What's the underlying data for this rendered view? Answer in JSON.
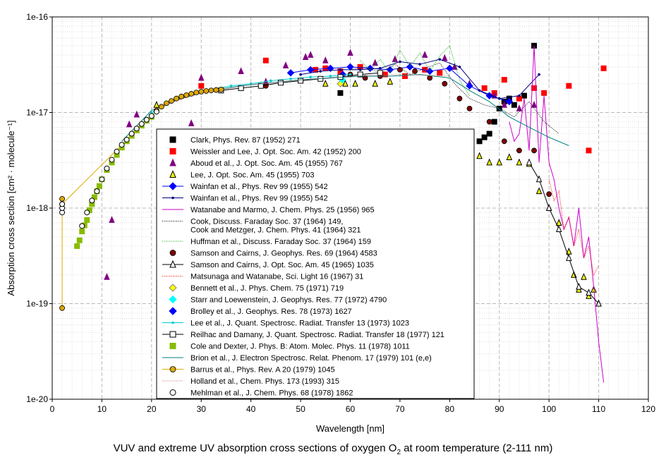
{
  "caption": {
    "before": "VUV and extreme UV absorption cross sections of oxygen O",
    "subscript": "2",
    "after": " at room temperature (2-111 nm)"
  },
  "chart_data": {
    "type": "scatter",
    "xlabel": "Wavelength [nm]",
    "ylabel": "Absorption cross section [cm² · molecule⁻¹]",
    "xlim": [
      0,
      120
    ],
    "ylim": [
      1e-20,
      1e-16
    ],
    "yscale": "log",
    "grid": true,
    "legend_position": "center-left",
    "x_ticks": [
      "0",
      "10",
      "20",
      "30",
      "40",
      "50",
      "60",
      "70",
      "80",
      "90",
      "100",
      "110",
      "120"
    ],
    "y_ticks": [
      "1e-20",
      "1e-19",
      "1e-18",
      "1e-17",
      "1e-16"
    ],
    "series": [
      {
        "name": "Clark, Phys. Rev. 87 (1952) 271",
        "style": "marker",
        "marker": "square",
        "color": "#000000",
        "x": [
          58,
          86,
          87,
          88,
          89,
          90,
          91,
          92,
          93,
          95,
          97
        ],
        "y": [
          1.6e-17,
          5e-18,
          5.5e-18,
          6e-18,
          8e-18,
          1.1e-17,
          1.3e-17,
          1.4e-17,
          1.2e-17,
          1.5e-17,
          5e-17
        ]
      },
      {
        "name": "Weissler and Lee, J. Opt. Soc. Am. 42 (1952) 200",
        "style": "marker",
        "marker": "square",
        "color": "#ff0000",
        "x": [
          30,
          43,
          53,
          55,
          58,
          62,
          67,
          71,
          75,
          78,
          87,
          89,
          91,
          94,
          97,
          99,
          104,
          108,
          111
        ],
        "y": [
          1.9e-17,
          3.5e-17,
          2.8e-17,
          2.9e-17,
          2.7e-17,
          3e-17,
          2.5e-17,
          2.4e-17,
          2.8e-17,
          2.6e-17,
          1.8e-17,
          1.6e-17,
          2.2e-17,
          1.4e-17,
          1.8e-17,
          1.6e-17,
          1.9e-17,
          4e-18,
          2.9e-17
        ]
      },
      {
        "name": "Aboud et al., J. Opt. Soc. Am. 45 (1955) 767",
        "style": "marker",
        "marker": "triangle",
        "color": "#800080",
        "x": [
          11,
          12,
          15.5,
          17,
          28,
          30,
          38,
          43,
          47,
          51,
          52,
          55,
          60,
          65,
          69,
          75,
          79,
          81,
          84,
          89,
          91,
          94,
          97
        ],
        "y": [
          1.9e-19,
          7.5e-19,
          7.5e-18,
          9.5e-18,
          7.7e-18,
          2.3e-17,
          2.7e-17,
          2.1e-17,
          3.1e-17,
          3.8e-17,
          4e-17,
          3.5e-17,
          4.2e-17,
          3.3e-17,
          3.6e-17,
          4e-17,
          3.7e-17,
          3e-17,
          2e-17,
          1.5e-17,
          1.2e-17,
          1.1e-17,
          1.2e-17
        ]
      },
      {
        "name": "Lee, J. Opt. Soc. Am. 45 (1955) 703",
        "style": "marker",
        "marker": "triangle",
        "color": "#ffff00",
        "x": [
          21,
          55,
          59,
          61,
          65,
          68,
          86,
          88,
          90,
          92,
          94,
          96,
          98,
          100,
          102,
          104,
          105,
          106,
          107,
          108,
          109,
          110
        ],
        "y": [
          1.2e-17,
          2e-17,
          2e-17,
          2e-17,
          2e-17,
          2.1e-17,
          3.5e-18,
          3e-18,
          3e-18,
          3.4e-18,
          3e-18,
          2.9e-18,
          1.5e-18,
          1e-18,
          7e-19,
          3.5e-19,
          2e-19,
          1.4e-19,
          1.9e-19,
          1.2e-19,
          1.4e-19,
          1e-19
        ]
      },
      {
        "name": "Wainfan et al., Phys. Rev 99 (1955) 542",
        "style": "line-marker",
        "marker": "diamond",
        "color": "#0000ff",
        "x": [
          48,
          52,
          56,
          60,
          64,
          68,
          72,
          76,
          80,
          84,
          88,
          92
        ],
        "y": [
          2.6e-17,
          2.8e-17,
          2.9e-17,
          3e-17,
          2.9e-17,
          2.8e-17,
          3e-17,
          2.7e-17,
          2.9e-17,
          1.9e-17,
          1.5e-17,
          1.3e-17
        ]
      },
      {
        "name": "Wainfan et al., Phys. Rev 99 (1955) 542",
        "style": "line-marker",
        "marker": "dot",
        "color": "#000080",
        "x": [
          50,
          54,
          58,
          62,
          66,
          70,
          74,
          78,
          82,
          86,
          90,
          94,
          98
        ],
        "y": [
          2.5e-17,
          2.7e-17,
          2.8e-17,
          2.8e-17,
          2.9e-17,
          3.4e-17,
          3.2e-17,
          3.6e-17,
          3e-17,
          1.7e-17,
          1.4e-17,
          1.5e-17,
          2.5e-17
        ]
      },
      {
        "name": "Watanabe and Marmo, J. Chem. Phys. 25 (1956) 965",
        "style": "line",
        "color": "#cc00cc",
        "x": [
          92,
          93,
          94,
          95,
          96,
          97,
          98,
          99,
          100,
          101,
          102,
          103,
          104,
          105,
          106,
          107,
          108,
          109,
          110,
          111
        ],
        "y": [
          8e-18,
          5e-18,
          6e-18,
          1.4e-17,
          4e-18,
          5e-17,
          3e-18,
          1.5e-17,
          3e-18,
          2e-18,
          1e-18,
          6e-19,
          8e-19,
          4e-19,
          1e-18,
          3e-19,
          5e-19,
          1.5e-19,
          4e-20,
          1.5e-20
        ]
      },
      {
        "name": "Cook, Discuss. Faraday Soc. 37 (1964) 149,",
        "name2": "Cook and Metzger, J. Chem. Phys. 41 (1964) 321",
        "style": "dotted",
        "color": "#000000",
        "x": [
          60,
          63,
          66,
          69,
          72,
          75,
          78,
          81,
          84,
          87,
          90,
          93,
          96,
          99,
          102
        ],
        "y": [
          2.8e-17,
          3e-17,
          2.6e-17,
          3.2e-17,
          2.5e-17,
          2.9e-17,
          3.3e-17,
          2e-17,
          1.4e-17,
          1.2e-17,
          1.1e-17,
          9e-18,
          1.3e-17,
          8e-18,
          6e-18
        ]
      },
      {
        "name": "Huffman et al., Discuss. Faraday Soc. 37 (1964) 159",
        "style": "dotted",
        "color": "#00aa00",
        "x": [
          62,
          64,
          66,
          68,
          70,
          72,
          74,
          76,
          78,
          80,
          82,
          84
        ],
        "y": [
          3.5e-17,
          2.8e-17,
          3.6e-17,
          2.6e-17,
          4.5e-17,
          3e-17,
          4.2e-17,
          2.7e-17,
          3.9e-17,
          5e-17,
          2.2e-17,
          1.5e-17
        ]
      },
      {
        "name": "Samson and Cairns, J. Geophys. Res. 69 (1964) 4583",
        "style": "marker",
        "marker": "circle",
        "color": "#800000",
        "x": [
          43,
          60,
          63,
          66,
          70,
          73,
          76,
          79,
          82,
          84,
          88,
          91,
          94,
          97,
          100
        ],
        "y": [
          1.9e-17,
          2.5e-17,
          2.3e-17,
          2.4e-17,
          2.8e-17,
          2.7e-17,
          2.3e-17,
          2e-17,
          1.4e-17,
          1.1e-17,
          8e-18,
          5e-18,
          4e-18,
          4e-18,
          1.4e-18
        ]
      },
      {
        "name": "Samson and Cairns, J. Opt. Soc. Am. 45 (1965) 1035",
        "style": "line-marker",
        "marker": "open-triangle",
        "color": "#000000",
        "x": [
          96,
          98,
          100,
          102,
          104,
          106,
          108,
          110
        ],
        "y": [
          3e-18,
          2e-18,
          1e-18,
          6e-19,
          3e-19,
          1.5e-19,
          1.3e-19,
          1e-19
        ]
      },
      {
        "name": "Matsunaga and Watanabe, Sci. Light 16 (1967) 31",
        "style": "dotted",
        "color": "#ff0000",
        "x": [
          100,
          101,
          102,
          103,
          104,
          105,
          106,
          107,
          108,
          109,
          110
        ],
        "y": [
          2e-18,
          1.2e-18,
          1.5e-18,
          6e-19,
          8e-19,
          4e-19,
          6e-19,
          3e-19,
          4e-19,
          2e-19,
          2.5e-19
        ]
      },
      {
        "name": "Bennett et al., J. Phys. Chem. 75 (1971) 719",
        "style": "marker",
        "marker": "diamond",
        "color": "#ffff00",
        "x": [
          58
        ],
        "y": [
          2e-17
        ]
      },
      {
        "name": "Starr and Loewenstein, J. Geophys. Res. 77 (1972) 4790",
        "style": "marker",
        "marker": "diamond",
        "color": "#00ffff",
        "x": [
          58.4
        ],
        "y": [
          2.2e-17
        ]
      },
      {
        "name": "Brolley et al., J. Geophys. Res. 78 (1973) 1627",
        "style": "marker",
        "marker": "diamond",
        "color": "#0000ff",
        "x": [
          58.5
        ],
        "y": [
          2.5e-17
        ]
      },
      {
        "name": "Lee et al., J. Quant. Spectrosc. Radiat. Transfer 13 (1973) 1023",
        "style": "line-marker",
        "marker": "dot",
        "color": "#00cccc",
        "x": [
          20,
          24,
          28,
          32,
          36,
          40,
          44,
          48,
          52,
          56,
          58,
          60
        ],
        "y": [
          1e-17,
          1.3e-17,
          1.55e-17,
          1.75e-17,
          1.9e-17,
          2e-17,
          2.15e-17,
          2.25e-17,
          2.35e-17,
          2.4e-17,
          2.45e-17,
          2.5e-17
        ]
      },
      {
        "name": "Reilhac and Damany, J. Quant. Spectrosc. Radiat. Transfer 18 (1977) 121",
        "style": "line-marker",
        "marker": "open-square",
        "color": "#000000",
        "x": [
          34,
          38,
          42,
          46,
          50,
          54,
          58,
          62,
          66
        ],
        "y": [
          1.7e-17,
          1.8e-17,
          1.9e-17,
          2.05e-17,
          2.15e-17,
          2.25e-17,
          2.35e-17,
          2.5e-17,
          2.6e-17
        ]
      },
      {
        "name": "Cole and Dexter, J. Phys. B: Atom. Molec. Phys. 11 (1978) 1011",
        "style": "marker",
        "marker": "square",
        "color": "#88bb00",
        "x": [
          5,
          5.5,
          6,
          6.5,
          7,
          7.5,
          8,
          8.5,
          9,
          9.5,
          10,
          11,
          12,
          13,
          14,
          15,
          16,
          17,
          18,
          19,
          20
        ],
        "y": [
          4e-19,
          4.6e-19,
          5.7e-19,
          6.6e-19,
          7.5e-19,
          9.5e-19,
          1.1e-18,
          1.3e-18,
          1.5e-18,
          1.7e-18,
          2e-18,
          2.5e-18,
          3e-18,
          3.6e-18,
          4.3e-18,
          5e-18,
          5.7e-18,
          6.5e-18,
          7.3e-18,
          8.2e-18,
          9e-18
        ]
      },
      {
        "name": "Brion et al., J. Electron Spectrosc. Relat. Phenom. 17 (1979) 101 (e,e)",
        "style": "line",
        "color": "#008080",
        "x": [
          14,
          20,
          26,
          32,
          38,
          44,
          50,
          56,
          62,
          68,
          74,
          80,
          84,
          88,
          92,
          96,
          100,
          104
        ],
        "y": [
          5e-18,
          1.05e-17,
          1.4e-17,
          1.7e-17,
          1.9e-17,
          2.05e-17,
          2.2e-17,
          2.3e-17,
          2.4e-17,
          2.4e-17,
          2.5e-17,
          2.3e-17,
          1.7e-17,
          1.3e-17,
          9e-18,
          7e-18,
          5.5e-18,
          4.5e-18
        ]
      },
      {
        "name": "Barrus et al., Phys. Rev. A 20 (1979) 1045",
        "style": "line-marker",
        "marker": "circle",
        "color": "#ddaa00",
        "x": [
          2,
          2,
          2,
          21,
          22,
          23,
          24,
          25,
          26,
          27,
          28,
          29,
          30,
          31,
          32,
          33,
          34
        ],
        "y": [
          9e-20,
          1.25e-18,
          1.1e-18,
          1.05e-17,
          1.15e-17,
          1.25e-17,
          1.32e-17,
          1.4e-17,
          1.47e-17,
          1.52e-17,
          1.57e-17,
          1.62e-17,
          1.65e-17,
          1.68e-17,
          1.7e-17,
          1.72e-17,
          1.74e-17
        ]
      },
      {
        "name": "Holland et al., Chem. Phys. 173 (1993) 315",
        "style": "dotted",
        "color": "#cc6666",
        "x": [
          20,
          30,
          40,
          50,
          60,
          70,
          80
        ],
        "y": [
          1.1e-17,
          1.6e-17,
          1.95e-17,
          2.2e-17,
          2.4e-17,
          2.5e-17,
          2.4e-17
        ]
      },
      {
        "name": "Mehlman et al., J. Chem. Phys. 68 (1978) 1862",
        "style": "marker",
        "marker": "open-circle",
        "color": "#000000",
        "x": [
          2,
          2,
          2,
          6,
          7,
          8,
          9,
          10,
          11,
          12,
          13,
          14,
          15,
          16,
          17,
          18,
          19,
          20,
          21
        ],
        "y": [
          9e-19,
          1e-18,
          1.1e-18,
          6.5e-19,
          9e-19,
          1.2e-18,
          1.5e-18,
          2e-18,
          2.6e-18,
          3.2e-18,
          3.9e-18,
          4.6e-18,
          5.2e-18,
          6e-18,
          6.8e-18,
          7.6e-18,
          8.4e-18,
          9.2e-18,
          1.02e-17
        ]
      }
    ]
  }
}
